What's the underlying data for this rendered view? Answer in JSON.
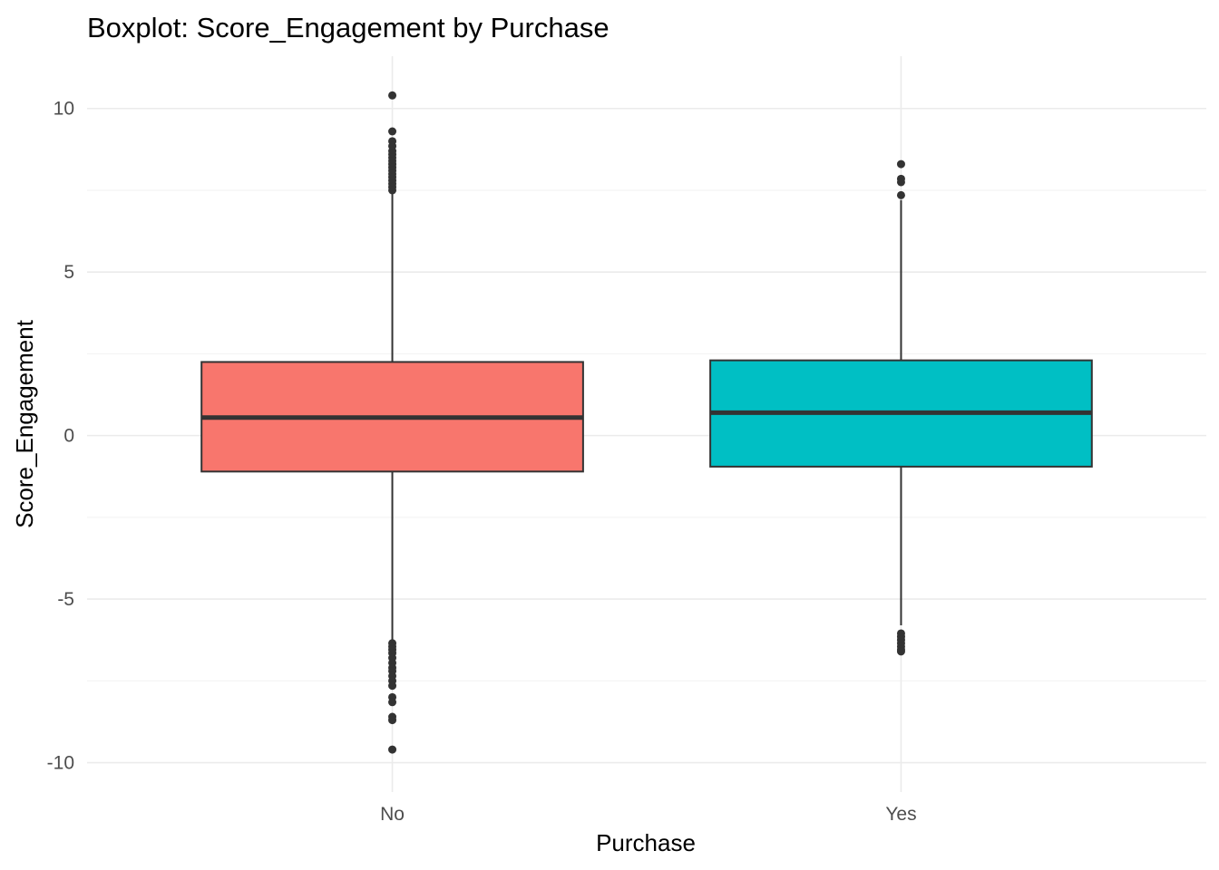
{
  "chart_data": {
    "type": "boxplot",
    "title": "Boxplot: Score_Engagement by Purchase",
    "xlabel": "Purchase",
    "ylabel": "Score_Engagement",
    "categories": [
      "No",
      "Yes"
    ],
    "ylim": [
      -10.9,
      11.6
    ],
    "yticks": [
      -10,
      -5,
      0,
      5,
      10
    ],
    "ytick_labels": [
      "-10",
      "-5",
      "0",
      "5",
      "10"
    ],
    "grid": true,
    "legend": "none",
    "boxes": [
      {
        "category": "No",
        "color": "#F8766D",
        "whisker_low": -6.3,
        "q1": -1.1,
        "median": 0.55,
        "q3": 2.25,
        "whisker_high": 7.4,
        "outliers": [
          10.4,
          9.3,
          9.0,
          8.85,
          8.7,
          8.6,
          8.5,
          8.4,
          8.3,
          8.2,
          8.1,
          8.0,
          7.9,
          7.8,
          7.7,
          7.6,
          7.5,
          -6.35,
          -6.45,
          -6.55,
          -6.65,
          -6.8,
          -6.95,
          -7.1,
          -7.2,
          -7.35,
          -7.5,
          -7.65,
          -8.0,
          -8.15,
          -8.6,
          -8.7,
          -9.6
        ]
      },
      {
        "category": "Yes",
        "color": "#00BFC4",
        "whisker_low": -5.8,
        "q1": -0.95,
        "median": 0.7,
        "q3": 2.3,
        "whisker_high": 7.2,
        "outliers": [
          8.3,
          7.85,
          7.75,
          7.35,
          -6.05,
          -6.15,
          -6.25,
          -6.35,
          -6.45,
          -6.55,
          -6.6
        ]
      }
    ]
  }
}
